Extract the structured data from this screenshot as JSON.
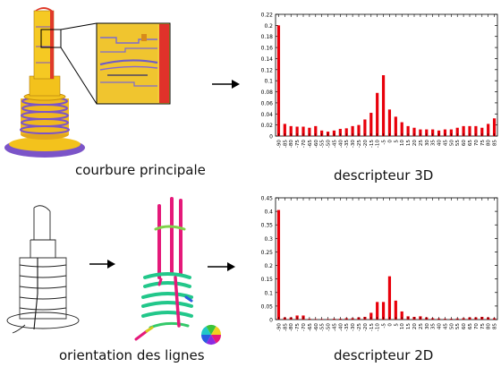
{
  "captions": {
    "top_left": "courbure principale",
    "top_right": "descripteur 3D",
    "bottom_left": "orientation des lignes",
    "bottom_right": "descripteur 2D"
  },
  "colors": {
    "bar": "#e8000b",
    "tower_yellow": "#f3c21c",
    "tower_purple": "#7b54c8",
    "line_pink": "#e5197a",
    "line_green": "#22c78a"
  },
  "chart_data": [
    {
      "type": "bar",
      "title": "descripteur 3D",
      "xlabel": "",
      "ylabel": "",
      "ylim": [
        0,
        0.22
      ],
      "yticks": [
        0,
        0.02,
        0.04,
        0.06,
        0.08,
        0.1,
        0.12,
        0.14,
        0.16,
        0.18,
        0.2,
        0.22
      ],
      "ytick_labels": [
        "0",
        "0.02",
        "0.04",
        "0.06",
        "0.08",
        "0.1",
        "0.12",
        "0.14",
        "0.16",
        "0.18",
        "0.2",
        "0.22"
      ],
      "categories": [
        "-90",
        "-85",
        "-80",
        "-75",
        "-70",
        "-65",
        "-60",
        "-55",
        "-50",
        "-45",
        "-40",
        "-35",
        "-30",
        "-25",
        "-20",
        "-15",
        "-10",
        "-5",
        "0",
        "5",
        "10",
        "15",
        "20",
        "25",
        "30",
        "35",
        "40",
        "45",
        "50",
        "55",
        "60",
        "65",
        "70",
        "75",
        "80",
        "85"
      ],
      "values": [
        0.2,
        0.022,
        0.018,
        0.017,
        0.017,
        0.015,
        0.018,
        0.01,
        0.008,
        0.01,
        0.013,
        0.014,
        0.018,
        0.02,
        0.03,
        0.042,
        0.078,
        0.11,
        0.048,
        0.035,
        0.025,
        0.018,
        0.015,
        0.012,
        0.012,
        0.012,
        0.01,
        0.012,
        0.012,
        0.015,
        0.018,
        0.018,
        0.018,
        0.015,
        0.022,
        0.032
      ]
    },
    {
      "type": "bar",
      "title": "descripteur 2D",
      "xlabel": "",
      "ylabel": "",
      "ylim": [
        0,
        0.45
      ],
      "yticks": [
        0,
        0.05,
        0.1,
        0.15,
        0.2,
        0.25,
        0.3,
        0.35,
        0.4,
        0.45
      ],
      "ytick_labels": [
        "0",
        "0.05",
        "0.1",
        "0.15",
        "0.2",
        "0.25",
        "0.3",
        "0.35",
        "0.4",
        "0.45"
      ],
      "categories": [
        "-90",
        "-85",
        "-80",
        "-75",
        "-70",
        "-65",
        "-60",
        "-55",
        "-50",
        "-45",
        "-40",
        "-35",
        "-30",
        "-25",
        "-20",
        "-15",
        "-10",
        "-5",
        "0",
        "5",
        "10",
        "15",
        "20",
        "25",
        "30",
        "35",
        "40",
        "45",
        "50",
        "55",
        "60",
        "65",
        "70",
        "75",
        "80",
        "85"
      ],
      "values": [
        0.405,
        0.008,
        0.008,
        0.015,
        0.015,
        0.003,
        0.002,
        0.002,
        0.002,
        0.003,
        0.003,
        0.005,
        0.005,
        0.008,
        0.01,
        0.025,
        0.065,
        0.065,
        0.16,
        0.07,
        0.03,
        0.012,
        0.01,
        0.012,
        0.008,
        0.005,
        0.004,
        0.003,
        0.003,
        0.004,
        0.005,
        0.008,
        0.008,
        0.01,
        0.008,
        0.005
      ]
    }
  ]
}
